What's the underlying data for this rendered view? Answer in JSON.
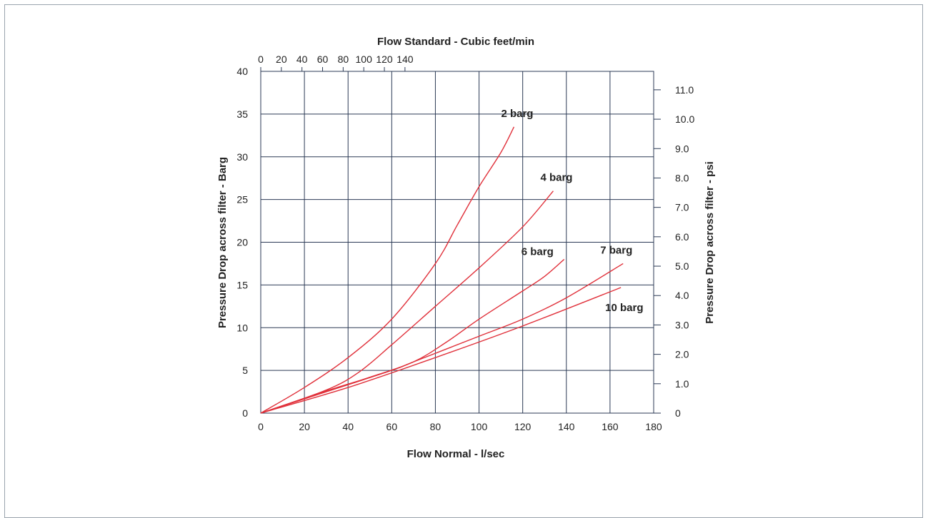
{
  "chart_data": {
    "type": "line",
    "top_axis": {
      "label": "Flow Standard - Cubic feet/min",
      "ticks": [
        0,
        20,
        40,
        60,
        80,
        100,
        120,
        140
      ],
      "tick_labels": [
        "0",
        "20",
        "40",
        "60",
        "80",
        "100",
        "120",
        "140"
      ],
      "cfm_per_lsec": 2.1189
    },
    "x_axis": {
      "label": "Flow Normal - l/sec",
      "range": [
        0,
        180
      ],
      "ticks": [
        0,
        20,
        40,
        60,
        80,
        100,
        120,
        140,
        160,
        180
      ],
      "tick_labels": [
        "0",
        "20",
        "40",
        "60",
        "80",
        "100",
        "120",
        "140",
        "160",
        "180"
      ]
    },
    "y_axis": {
      "label": "Pressure Drop across filter - Barg",
      "range": [
        0,
        40
      ],
      "ticks": [
        0,
        5,
        10,
        15,
        20,
        25,
        30,
        35,
        40
      ],
      "tick_labels": [
        "0",
        "5",
        "10",
        "15",
        "20",
        "25",
        "30",
        "35",
        "40"
      ]
    },
    "y2_axis": {
      "label": "Pressure Drop across filter - psi",
      "ticks": [
        0,
        1.0,
        2.0,
        3.0,
        4.0,
        5.0,
        6.0,
        7.0,
        8.0,
        9.0,
        10.0,
        11.0
      ],
      "tick_labels": [
        "0",
        "1.0",
        "2.0",
        "3.0",
        "4.0",
        "5.0",
        "6.0",
        "7.0",
        "8.0",
        "9.0",
        "10.0",
        "11.0"
      ],
      "psi_per_barg": 0.2907
    },
    "grid": true,
    "line_color": "#e0303a",
    "series": [
      {
        "name": "2 barg",
        "x": [
          0,
          20,
          40,
          60,
          80,
          90,
          100,
          110,
          116
        ],
        "y": [
          0,
          3.0,
          6.5,
          11.0,
          17.5,
          22.0,
          26.5,
          30.5,
          33.5
        ]
      },
      {
        "name": "4 barg",
        "x": [
          0,
          30,
          45,
          60,
          80,
          100,
          120,
          134
        ],
        "y": [
          0,
          2.7,
          4.8,
          8.0,
          12.5,
          17.0,
          21.8,
          26.0
        ]
      },
      {
        "name": "6 barg",
        "x": [
          0,
          30,
          50,
          70,
          85,
          100,
          120,
          130,
          139
        ],
        "y": [
          0,
          2.6,
          4.2,
          6.0,
          8.3,
          11.0,
          14.3,
          16.0,
          18.0
        ]
      },
      {
        "name": "7 barg",
        "x": [
          0,
          30,
          60,
          70,
          100,
          120,
          140,
          166
        ],
        "y": [
          0,
          2.5,
          5.0,
          6.0,
          9.0,
          11.0,
          13.5,
          17.5
        ]
      },
      {
        "name": "10 barg",
        "x": [
          0,
          40,
          80,
          120,
          165
        ],
        "y": [
          0,
          3.0,
          6.5,
          10.2,
          14.7
        ]
      }
    ]
  }
}
